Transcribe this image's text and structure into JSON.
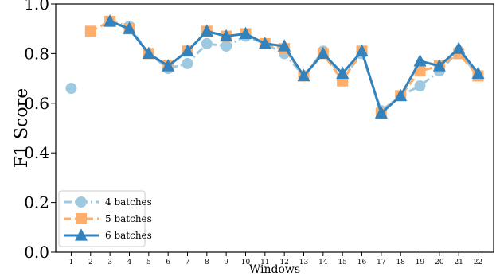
{
  "chart_data": {
    "type": "line",
    "xlabel": "Windows",
    "ylabel": "F1 Score",
    "x": [
      1,
      2,
      3,
      4,
      5,
      6,
      7,
      8,
      9,
      10,
      11,
      12,
      13,
      14,
      15,
      16,
      17,
      18,
      19,
      20,
      21,
      22
    ],
    "xlim": [
      0.2,
      22.8
    ],
    "ylim": [
      0.0,
      1.0
    ],
    "yticks": [
      "0.0",
      "0.2",
      "0.4",
      "0.6",
      "0.8",
      "1.0"
    ],
    "grid": false,
    "legend_position": "lower-left",
    "series": [
      {
        "name": "4 batches",
        "marker": "circle",
        "line_style": "dashdot",
        "color": "#9ecae1",
        "values": [
          0.66,
          null,
          0.93,
          0.91,
          0.8,
          0.74,
          0.76,
          0.84,
          0.83,
          0.87,
          0.84,
          0.8,
          0.71,
          0.81,
          0.7,
          0.8,
          0.57,
          0.63,
          0.67,
          0.73,
          0.81,
          0.71
        ]
      },
      {
        "name": "5 batches",
        "marker": "square",
        "line_style": "dashed",
        "color": "#fdae6b",
        "values": [
          null,
          0.89,
          0.93,
          0.9,
          0.8,
          0.75,
          0.81,
          0.89,
          0.87,
          0.88,
          0.84,
          0.82,
          0.71,
          0.8,
          0.69,
          0.81,
          0.56,
          0.63,
          0.73,
          0.75,
          0.8,
          0.71
        ]
      },
      {
        "name": "6 batches",
        "marker": "triangle",
        "line_style": "solid",
        "color": "#3182bd",
        "values": [
          null,
          null,
          0.93,
          0.9,
          0.8,
          0.75,
          0.81,
          0.89,
          0.87,
          0.88,
          0.84,
          0.83,
          0.71,
          0.8,
          0.72,
          0.81,
          0.56,
          0.63,
          0.77,
          0.75,
          0.82,
          0.72
        ]
      }
    ]
  }
}
